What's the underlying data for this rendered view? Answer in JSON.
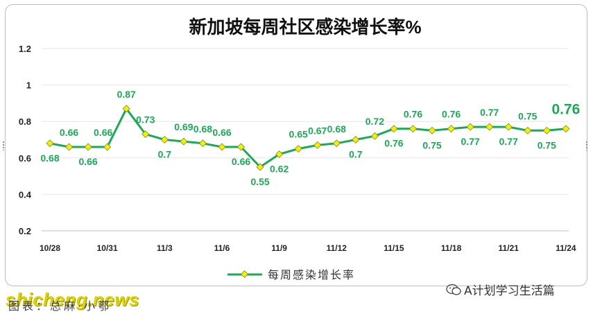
{
  "chart_data": {
    "type": "line",
    "title": "新加坡每周社区感染增长率%",
    "xlabel": "",
    "ylabel": "",
    "ylim": [
      0.2,
      1.2
    ],
    "yticks": [
      "0.2",
      "0.4",
      "0.6",
      "0.8",
      "1",
      "1.2"
    ],
    "grid": true,
    "legend_position": "bottom",
    "xtick_labels": [
      "10/28",
      "10/31",
      "11/3",
      "11/6",
      "11/9",
      "11/12",
      "11/15",
      "11/18",
      "11/21",
      "11/24"
    ],
    "series": [
      {
        "name": "每周感染增长率",
        "color": "#1aaa55",
        "marker_color": "#f2f200",
        "x": [
          "10/28",
          "10/29",
          "10/30",
          "10/31",
          "11/1",
          "11/2",
          "11/3",
          "11/4",
          "11/5",
          "11/6",
          "11/7",
          "11/8",
          "11/9",
          "11/10",
          "11/11",
          "11/12",
          "11/13",
          "11/14",
          "11/15",
          "11/16",
          "11/17",
          "11/18",
          "11/19",
          "11/20",
          "11/21",
          "11/22",
          "11/23",
          "11/24"
        ],
        "values": [
          0.68,
          0.66,
          0.66,
          0.66,
          0.87,
          0.73,
          0.7,
          0.69,
          0.68,
          0.66,
          0.66,
          0.55,
          0.62,
          0.65,
          0.67,
          0.68,
          0.7,
          0.72,
          0.76,
          0.76,
          0.75,
          0.76,
          0.77,
          0.77,
          0.77,
          0.75,
          0.75,
          0.76
        ],
        "labels": [
          "0.68",
          "0.66",
          "0.66",
          "0.66",
          "0.87",
          "0.73",
          "0.7",
          "0.69",
          "0.68",
          "0.66",
          "0.66",
          "0.55",
          "0.62",
          "0.65",
          "0.67",
          "0.68",
          "0.7",
          "0.72",
          "0.76",
          "0.76",
          "0.75",
          "0.76",
          "0.77",
          "0.77",
          "0.77",
          "0.75",
          "0.75",
          "0.76"
        ]
      }
    ]
  },
  "footer": {
    "caption": "图表：总麻·小鄂",
    "watermark": "shicheng.news",
    "wechat_account": "A计划学习生活篇"
  }
}
